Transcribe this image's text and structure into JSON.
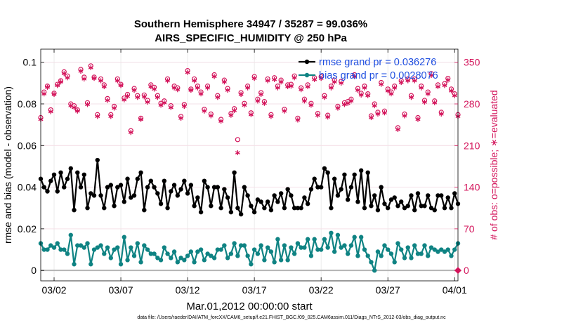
{
  "chart_data": {
    "type": "line",
    "title": "Southern Hemisphere 34947 / 35287 = 99.036%",
    "subtitle": "AIRS_SPECIFIC_HUMIDITY @ 250 hPa",
    "xlabel": "Mar.01,2012 00:00:00 start",
    "ylabel": "rmse and bias (model - observation)",
    "ylabel_right": "# of obs: o=possible; ∗=evaluated",
    "xlim": [
      0,
      31.25
    ],
    "ylim": [
      -0.005,
      0.1063
    ],
    "ylim_right": [
      -17.5,
      372.1
    ],
    "x_ticks": [
      {
        "value": 1.0,
        "label": "03/02"
      },
      {
        "value": 6.0,
        "label": "03/07"
      },
      {
        "value": 11.0,
        "label": "03/12"
      },
      {
        "value": 16.0,
        "label": "03/17"
      },
      {
        "value": 21.0,
        "label": "03/22"
      },
      {
        "value": 26.0,
        "label": "03/27"
      },
      {
        "value": 31.0,
        "label": "04/01"
      }
    ],
    "y_ticks": [
      {
        "value": 0,
        "label": "0"
      },
      {
        "value": 0.02,
        "label": "0.02"
      },
      {
        "value": 0.04,
        "label": "0.04"
      },
      {
        "value": 0.06,
        "label": "0.06"
      },
      {
        "value": 0.08,
        "label": "0.08"
      },
      {
        "value": 0.1,
        "label": "0.1"
      }
    ],
    "y_ticks_right": [
      {
        "value": 0,
        "label": "0"
      },
      {
        "value": 70,
        "label": "70"
      },
      {
        "value": 140,
        "label": "140"
      },
      {
        "value": 210,
        "label": "210"
      },
      {
        "value": 280,
        "label": "280"
      },
      {
        "value": 350,
        "label": "350"
      }
    ],
    "grid": true,
    "legend_position": "top-right",
    "series": [
      {
        "name": "rmse grand pr = 0.036276",
        "color": "#000000",
        "x": [
          0.0,
          0.25,
          0.5,
          0.75,
          1.0,
          1.25,
          1.5,
          1.75,
          2.0,
          2.25,
          2.5,
          2.75,
          3.0,
          3.25,
          3.5,
          3.75,
          4.0,
          4.25,
          4.5,
          4.75,
          5.0,
          5.25,
          5.5,
          5.75,
          6.0,
          6.25,
          6.5,
          6.75,
          7.0,
          7.25,
          7.5,
          7.75,
          8.0,
          8.25,
          8.5,
          8.75,
          9.0,
          9.25,
          9.5,
          9.75,
          10.0,
          10.25,
          10.5,
          10.75,
          11.0,
          11.25,
          11.5,
          11.75,
          12.0,
          12.25,
          12.5,
          12.75,
          13.0,
          13.25,
          13.5,
          13.75,
          14.0,
          14.25,
          14.5,
          14.75,
          15.0,
          15.25,
          15.5,
          15.75,
          16.0,
          16.25,
          16.5,
          16.75,
          17.0,
          17.25,
          17.5,
          17.75,
          18.0,
          18.25,
          18.5,
          18.75,
          19.0,
          19.25,
          19.5,
          19.75,
          20.0,
          20.25,
          20.5,
          20.75,
          21.0,
          21.25,
          21.5,
          21.75,
          22.0,
          22.25,
          22.5,
          22.75,
          23.0,
          23.25,
          23.5,
          23.75,
          24.0,
          24.25,
          24.5,
          24.75,
          25.0,
          25.25,
          25.5,
          25.75,
          26.0,
          26.25,
          26.5,
          26.75,
          27.0,
          27.25,
          27.5,
          27.75,
          28.0,
          28.25,
          28.5,
          28.75,
          29.0,
          29.25,
          29.5,
          29.75,
          30.0,
          30.25,
          30.5,
          30.75,
          31.0,
          31.25
        ],
        "values": [
          0.044,
          0.04,
          0.038,
          0.043,
          0.046,
          0.038,
          0.047,
          0.04,
          0.044,
          0.049,
          0.029,
          0.047,
          0.04,
          0.046,
          0.03,
          0.037,
          0.036,
          0.053,
          0.036,
          0.03,
          0.04,
          0.041,
          0.031,
          0.04,
          0.041,
          0.033,
          0.044,
          0.035,
          0.036,
          0.044,
          0.047,
          0.029,
          0.04,
          0.043,
          0.04,
          0.037,
          0.032,
          0.043,
          0.03,
          0.038,
          0.041,
          0.036,
          0.039,
          0.043,
          0.037,
          0.041,
          0.031,
          0.035,
          0.028,
          0.043,
          0.04,
          0.031,
          0.04,
          0.04,
          0.03,
          0.039,
          0.035,
          0.028,
          0.047,
          0.03,
          0.027,
          0.04,
          0.036,
          0.031,
          0.028,
          0.034,
          0.033,
          0.03,
          0.033,
          0.029,
          0.036,
          0.033,
          0.037,
          0.03,
          0.039,
          0.036,
          0.03,
          0.03,
          0.03,
          0.035,
          0.032,
          0.039,
          0.044,
          0.04,
          0.04,
          0.049,
          0.047,
          0.03,
          0.044,
          0.036,
          0.039,
          0.046,
          0.034,
          0.04,
          0.046,
          0.033,
          0.048,
          0.03,
          0.047,
          0.031,
          0.036,
          0.029,
          0.04,
          0.032,
          0.03,
          0.034,
          0.035,
          0.031,
          0.033,
          0.03,
          0.031,
          0.036,
          0.029,
          0.037,
          0.031,
          0.031,
          0.036,
          0.03,
          0.029,
          0.036,
          0.036,
          0.03,
          0.035,
          0.03,
          0.037,
          0.032
        ]
      },
      {
        "name": "bias grand pr = 0.0028076",
        "color": "#0f8383",
        "x": [
          0.0,
          0.25,
          0.5,
          0.75,
          1.0,
          1.25,
          1.5,
          1.75,
          2.0,
          2.25,
          2.5,
          2.75,
          3.0,
          3.25,
          3.5,
          3.75,
          4.0,
          4.25,
          4.5,
          4.75,
          5.0,
          5.25,
          5.5,
          5.75,
          6.0,
          6.25,
          6.5,
          6.75,
          7.0,
          7.25,
          7.5,
          7.75,
          8.0,
          8.25,
          8.5,
          8.75,
          9.0,
          9.25,
          9.5,
          9.75,
          10.0,
          10.25,
          10.5,
          10.75,
          11.0,
          11.25,
          11.5,
          11.75,
          12.0,
          12.25,
          12.5,
          12.75,
          13.0,
          13.25,
          13.5,
          13.75,
          14.0,
          14.25,
          14.5,
          14.75,
          15.0,
          15.25,
          15.5,
          15.75,
          16.0,
          16.25,
          16.5,
          16.75,
          17.0,
          17.25,
          17.5,
          17.75,
          18.0,
          18.25,
          18.5,
          18.75,
          19.0,
          19.25,
          19.5,
          19.75,
          20.0,
          20.25,
          20.5,
          20.75,
          21.0,
          21.25,
          21.5,
          21.75,
          22.0,
          22.25,
          22.5,
          22.75,
          23.0,
          23.25,
          23.5,
          23.75,
          24.0,
          24.25,
          24.5,
          24.75,
          25.0,
          25.25,
          25.5,
          25.75,
          26.0,
          26.25,
          26.5,
          26.75,
          27.0,
          27.25,
          27.5,
          27.75,
          28.0,
          28.25,
          28.5,
          28.75,
          29.0,
          29.25,
          29.5,
          29.75,
          30.0,
          30.25,
          30.5,
          30.75,
          31.0,
          31.25
        ],
        "values": [
          0.013,
          0.01,
          0.01,
          0.012,
          0.011,
          0.013,
          0.01,
          0.01,
          0.008,
          0.017,
          0.003,
          0.012,
          0.012,
          0.011,
          0.013,
          0.003,
          0.01,
          0.011,
          0.012,
          0.008,
          0.011,
          0.006,
          0.01,
          0.011,
          0.003,
          0.016,
          0.005,
          0.011,
          0.007,
          0.013,
          0.004,
          0.012,
          0.01,
          0.008,
          0.008,
          0.006,
          0.005,
          0.011,
          0.008,
          0.006,
          0.009,
          0.004,
          0.006,
          0.005,
          0.007,
          0.009,
          0.004,
          0.009,
          0.01,
          0.005,
          0.008,
          0.007,
          0.006,
          0.01,
          0.01,
          0.012,
          0.006,
          0.008,
          0.013,
          0.007,
          0.012,
          0.012,
          0.007,
          0.003,
          0.01,
          0.008,
          0.012,
          0.005,
          0.011,
          0.009,
          0.004,
          0.015,
          0.005,
          0.012,
          0.005,
          0.011,
          0.008,
          0.013,
          0.011,
          0.011,
          0.015,
          0.007,
          0.015,
          0.01,
          0.01,
          0.015,
          0.011,
          0.018,
          0.009,
          0.017,
          0.011,
          0.012,
          0.008,
          0.012,
          0.016,
          0.007,
          0.016,
          0.01,
          0.007,
          0.004,
          0.0,
          0.009,
          0.007,
          0.012,
          0.01,
          0.008,
          0.004,
          0.013,
          0.01,
          0.006,
          0.011,
          0.006,
          0.012,
          0.008,
          0.008,
          0.012,
          0.007,
          0.011,
          0.01,
          0.009,
          0.01,
          0.009,
          0.01,
          0.007,
          0.01,
          0.013
        ]
      },
      {
        "name": "possible",
        "color": "#d3135a",
        "axis": "right",
        "x": [
          0.0,
          0.25,
          0.5,
          0.75,
          1.0,
          1.25,
          1.5,
          1.75,
          2.0,
          2.25,
          2.5,
          2.75,
          3.0,
          3.25,
          3.5,
          3.75,
          4.0,
          4.25,
          4.5,
          4.75,
          5.0,
          5.25,
          5.5,
          5.75,
          6.0,
          6.25,
          6.5,
          6.75,
          7.0,
          7.25,
          7.5,
          7.75,
          8.0,
          8.25,
          8.5,
          8.75,
          9.0,
          9.25,
          9.5,
          9.75,
          10.0,
          10.25,
          10.5,
          10.75,
          11.0,
          11.25,
          11.5,
          11.75,
          12.0,
          12.25,
          12.5,
          12.75,
          13.0,
          13.25,
          13.5,
          13.75,
          14.0,
          14.25,
          14.5,
          14.75,
          15.0,
          15.25,
          15.5,
          15.75,
          16.0,
          16.25,
          16.5,
          16.75,
          17.0,
          17.25,
          17.5,
          17.75,
          18.0,
          18.25,
          18.5,
          18.75,
          19.0,
          19.25,
          19.5,
          19.75,
          20.0,
          20.25,
          20.5,
          20.75,
          21.0,
          21.25,
          21.5,
          21.75,
          22.0,
          22.25,
          22.5,
          22.75,
          23.0,
          23.25,
          23.5,
          23.75,
          24.0,
          24.25,
          24.5,
          24.75,
          25.0,
          25.25,
          25.5,
          25.75,
          26.0,
          26.25,
          26.5,
          26.75,
          27.0,
          27.25,
          27.5,
          27.75,
          28.0,
          28.25,
          28.5,
          28.75,
          29.0,
          29.25,
          29.5,
          29.75,
          30.0,
          30.25,
          30.5,
          30.75,
          31.0,
          31.25
        ],
        "values": [
          257,
          300,
          310,
          270,
          298,
          313,
          319,
          334,
          327,
          280,
          277,
          270,
          338,
          325,
          282,
          344,
          325,
          262,
          322,
          312,
          289,
          262,
          276,
          322,
          313,
          290,
          296,
          235,
          306,
          294,
          256,
          295,
          286,
          312,
          308,
          294,
          281,
          285,
          322,
          277,
          310,
          307,
          259,
          279,
          336,
          305,
          322,
          310,
          300,
          271,
          310,
          263,
          329,
          294,
          254,
          320,
          306,
          264,
          272,
          220,
          299,
          281,
          310,
          265,
          326,
          288,
          299,
          284,
          322,
          262,
          324,
          310,
          320,
          271,
          312,
          313,
          327,
          256,
          307,
          288,
          312,
          281,
          324,
          264,
          326,
          294,
          261,
          310,
          320,
          276,
          318,
          282,
          284,
          288,
          329,
          306,
          298,
          310,
          297,
          260,
          280,
          266,
          316,
          268,
          305,
          300,
          310,
          240,
          319,
          263,
          322,
          294,
          322,
          257,
          310,
          286,
          300,
          331,
          285,
          312,
          266,
          314,
          323,
          305,
          297,
          262
        ]
      },
      {
        "name": "evaluated",
        "color": "#d3135a",
        "axis": "right",
        "x": [
          0.0,
          0.25,
          0.5,
          0.75,
          1.0,
          1.25,
          1.5,
          1.75,
          2.0,
          2.25,
          2.5,
          2.75,
          3.0,
          3.25,
          3.5,
          3.75,
          4.0,
          4.25,
          4.5,
          4.75,
          5.0,
          5.25,
          5.5,
          5.75,
          6.0,
          6.25,
          6.5,
          6.75,
          7.0,
          7.25,
          7.5,
          7.75,
          8.0,
          8.25,
          8.5,
          8.75,
          9.0,
          9.25,
          9.5,
          9.75,
          10.0,
          10.25,
          10.5,
          10.75,
          11.0,
          11.25,
          11.5,
          11.75,
          12.0,
          12.25,
          12.5,
          12.75,
          13.0,
          13.25,
          13.5,
          13.75,
          14.0,
          14.25,
          14.5,
          14.75,
          15.0,
          15.25,
          15.5,
          15.75,
          16.0,
          16.25,
          16.5,
          16.75,
          17.0,
          17.25,
          17.5,
          17.75,
          18.0,
          18.25,
          18.5,
          18.75,
          19.0,
          19.25,
          19.5,
          19.75,
          20.0,
          20.25,
          20.5,
          20.75,
          21.0,
          21.25,
          21.5,
          21.75,
          22.0,
          22.25,
          22.5,
          22.75,
          23.0,
          23.25,
          23.5,
          23.75,
          24.0,
          24.25,
          24.5,
          24.75,
          25.0,
          25.25,
          25.5,
          25.75,
          26.0,
          26.25,
          26.5,
          26.75,
          27.0,
          27.25,
          27.5,
          27.75,
          28.0,
          28.25,
          28.5,
          28.75,
          29.0,
          29.25,
          29.5,
          29.75,
          30.0,
          30.25,
          30.5,
          30.75,
          31.0,
          31.25
        ],
        "values": [
          254,
          297,
          308,
          267,
          296,
          311,
          317,
          331,
          324,
          277,
          274,
          268,
          335,
          322,
          279,
          341,
          323,
          259,
          319,
          309,
          286,
          259,
          273,
          319,
          311,
          287,
          293,
          232,
          303,
          291,
          254,
          292,
          283,
          309,
          305,
          291,
          278,
          282,
          319,
          274,
          307,
          304,
          256,
          276,
          333,
          303,
          319,
          307,
          297,
          268,
          307,
          260,
          326,
          291,
          251,
          317,
          303,
          261,
          269,
          198,
          296,
          278,
          307,
          262,
          323,
          285,
          296,
          281,
          319,
          259,
          321,
          307,
          317,
          268,
          309,
          310,
          324,
          253,
          304,
          285,
          309,
          278,
          321,
          261,
          323,
          291,
          258,
          307,
          317,
          273,
          315,
          279,
          281,
          285,
          326,
          303,
          295,
          307,
          294,
          257,
          277,
          263,
          313,
          265,
          302,
          297,
          307,
          237,
          316,
          260,
          319,
          291,
          319,
          254,
          307,
          283,
          297,
          328,
          282,
          309,
          263,
          311,
          320,
          302,
          294,
          259
        ]
      }
    ]
  },
  "footnote": "data file: /Users/raeder/DAI/ATM_forcXX/CAM6_setup/f.e21.FHIST_BGC.f09_025.CAM6assim.011/Diags_NTrS_2012-03/obs_diag_output.nc"
}
